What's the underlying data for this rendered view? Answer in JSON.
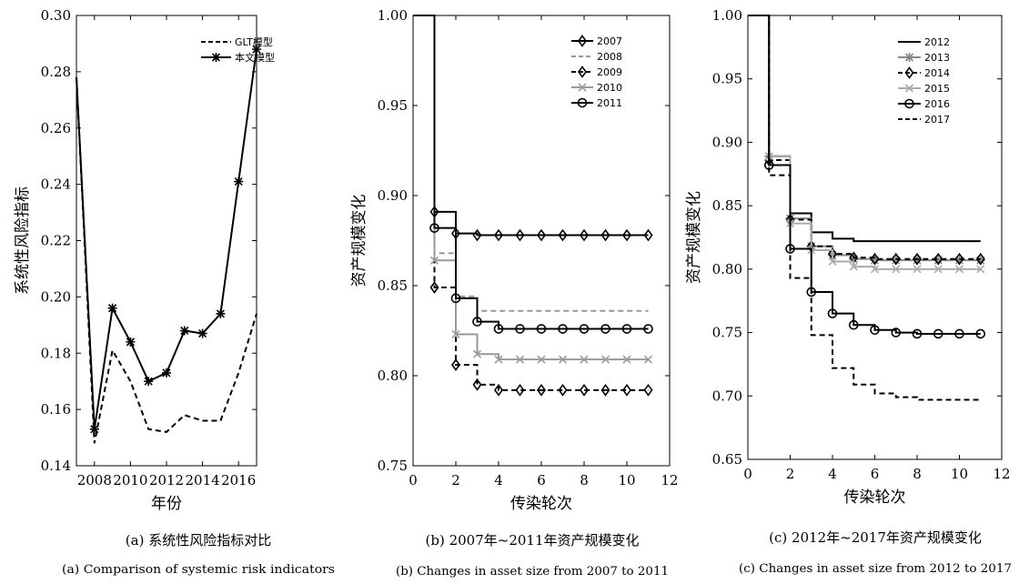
{
  "chart_data": [
    {
      "type": "line",
      "xlabel": "年份",
      "ylabel": "系统性风险指标",
      "xlim": [
        2007,
        2017
      ],
      "ylim": [
        0.14,
        0.3
      ],
      "xticks": [
        "2008",
        "2010",
        "2012",
        "2014",
        "2016"
      ],
      "yticks": [
        "0.14",
        "0.16",
        "0.18",
        "0.20",
        "0.22",
        "0.24",
        "0.26",
        "0.28",
        "0.30"
      ],
      "legend_position": "top-right",
      "x": [
        2007,
        2008,
        2009,
        2010,
        2011,
        2012,
        2013,
        2014,
        2015,
        2016,
        2017
      ],
      "series": [
        {
          "name": "GLT模型",
          "style": "dashed",
          "marker": "none",
          "color": "#000000",
          "values": [
            0.278,
            0.148,
            0.181,
            0.17,
            0.153,
            0.152,
            0.158,
            0.156,
            0.156,
            0.173,
            0.194
          ]
        },
        {
          "name": "本文模型",
          "style": "solid",
          "marker": "asterisk",
          "color": "#000000",
          "values": [
            0.278,
            0.153,
            0.196,
            0.184,
            0.17,
            0.173,
            0.188,
            0.187,
            0.194,
            0.241,
            0.288
          ]
        }
      ],
      "caption_cn": "(a) 系统性风险指标对比",
      "caption_en": "(a) Comparison of systemic risk indicators"
    },
    {
      "type": "line",
      "step": true,
      "xlabel": "传染轮次",
      "ylabel": "资产规模变化",
      "xlim": [
        0,
        12
      ],
      "ylim": [
        0.75,
        1.0
      ],
      "xticks": [
        "0",
        "2",
        "4",
        "6",
        "8",
        "10",
        "12"
      ],
      "yticks": [
        "0.75",
        "0.80",
        "0.85",
        "0.90",
        "0.95",
        "1.00"
      ],
      "legend_position": "top-right",
      "x": [
        0,
        1,
        2,
        3,
        4,
        5,
        6,
        7,
        8,
        9,
        10,
        11
      ],
      "series": [
        {
          "name": "2007",
          "style": "solid",
          "marker": "diamond",
          "color": "#000000",
          "values": [
            1.0,
            0.891,
            0.879,
            0.878,
            0.878,
            0.878,
            0.878,
            0.878,
            0.878,
            0.878,
            0.878,
            0.878
          ]
        },
        {
          "name": "2008",
          "style": "dashed",
          "marker": "none",
          "color": "#999999",
          "values": [
            1.0,
            0.868,
            0.844,
            0.836,
            0.836,
            0.836,
            0.836,
            0.836,
            0.836,
            0.836,
            0.836,
            0.836
          ]
        },
        {
          "name": "2009",
          "style": "dashed",
          "marker": "diamond",
          "color": "#000000",
          "values": [
            1.0,
            0.849,
            0.806,
            0.795,
            0.792,
            0.792,
            0.792,
            0.792,
            0.792,
            0.792,
            0.792,
            0.792
          ]
        },
        {
          "name": "2010",
          "style": "solid",
          "marker": "x",
          "color": "#999999",
          "values": [
            1.0,
            0.864,
            0.823,
            0.812,
            0.809,
            0.809,
            0.809,
            0.809,
            0.809,
            0.809,
            0.809,
            0.809
          ]
        },
        {
          "name": "2011",
          "style": "solid",
          "marker": "circle",
          "color": "#000000",
          "values": [
            1.0,
            0.882,
            0.843,
            0.83,
            0.826,
            0.826,
            0.826,
            0.826,
            0.826,
            0.826,
            0.826,
            0.826
          ]
        }
      ],
      "caption_cn": "(b) 2007年~2011年资产规模变化",
      "caption_en": "(b) Changes in asset size from 2007 to 2011"
    },
    {
      "type": "line",
      "step": true,
      "xlabel": "传染轮次",
      "ylabel": "资产规模变化",
      "xlim": [
        0,
        12
      ],
      "ylim": [
        0.65,
        1.0
      ],
      "xticks": [
        "0",
        "2",
        "4",
        "6",
        "8",
        "10",
        "12"
      ],
      "yticks": [
        "0.65",
        "0.70",
        "0.75",
        "0.80",
        "0.85",
        "0.90",
        "0.95",
        "1.00"
      ],
      "legend_position": "top-right",
      "x": [
        0,
        1,
        2,
        3,
        4,
        5,
        6,
        7,
        8,
        9,
        10,
        11
      ],
      "series": [
        {
          "name": "2012",
          "style": "solid",
          "marker": "none",
          "color": "#000000",
          "values": [
            1.0,
            0.889,
            0.844,
            0.829,
            0.824,
            0.822,
            0.822,
            0.822,
            0.822,
            0.822,
            0.822,
            0.822
          ]
        },
        {
          "name": "2013",
          "style": "solid",
          "marker": "asterisk",
          "color": "#888888",
          "values": [
            1.0,
            0.889,
            0.84,
            0.818,
            0.811,
            0.808,
            0.807,
            0.807,
            0.807,
            0.807,
            0.807,
            0.807
          ]
        },
        {
          "name": "2014",
          "style": "dashed",
          "marker": "diamond",
          "color": "#000000",
          "values": [
            1.0,
            0.886,
            0.839,
            0.818,
            0.812,
            0.809,
            0.808,
            0.808,
            0.808,
            0.808,
            0.808,
            0.808
          ]
        },
        {
          "name": "2015",
          "style": "solid",
          "marker": "x",
          "color": "#aaaaaa",
          "values": [
            1.0,
            0.889,
            0.836,
            0.815,
            0.806,
            0.802,
            0.8,
            0.8,
            0.8,
            0.8,
            0.8,
            0.8
          ]
        },
        {
          "name": "2016",
          "style": "solid",
          "marker": "circle",
          "color": "#000000",
          "values": [
            1.0,
            0.882,
            0.816,
            0.782,
            0.765,
            0.756,
            0.752,
            0.75,
            0.749,
            0.749,
            0.749,
            0.749
          ]
        },
        {
          "name": "2017",
          "style": "dashed",
          "marker": "none",
          "color": "#000000",
          "values": [
            1.0,
            0.874,
            0.793,
            0.748,
            0.722,
            0.709,
            0.702,
            0.699,
            0.697,
            0.697,
            0.697,
            0.697
          ]
        }
      ],
      "caption_cn": "(c) 2012年~2017年资产规模变化",
      "caption_en": "(c) Changes in asset size from 2012 to 2017"
    }
  ]
}
